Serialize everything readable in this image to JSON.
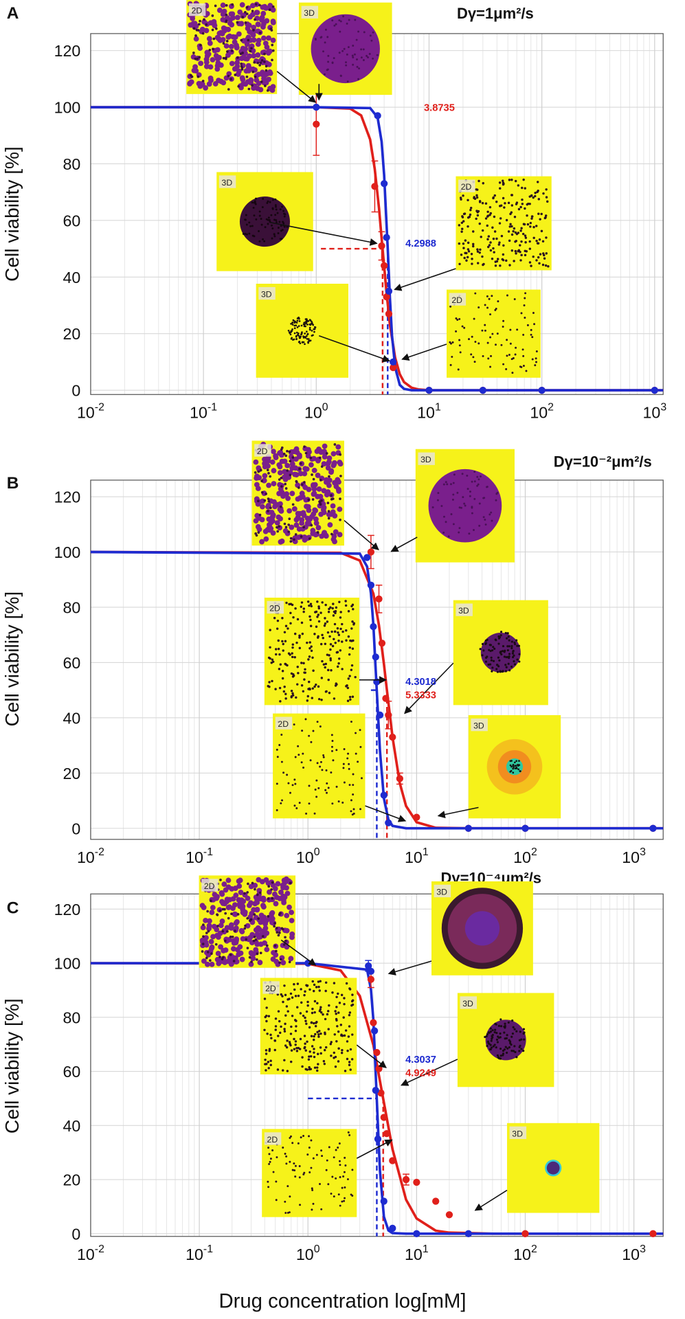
{
  "x_label": "Drug concentration log[mM]",
  "chart_data": [
    {
      "type": "scatter",
      "panel_label": "A",
      "title": "Dγ=1μm²/s",
      "y_label": "Cell viability [%]",
      "log_x": true,
      "grid": true,
      "minor_grid": true,
      "xlim": [
        0.01,
        1190
      ],
      "ylim": [
        -1.5,
        126
      ],
      "xticks": [
        {
          "value": 0.01,
          "label": "10",
          "exponent": "-2"
        },
        {
          "value": 0.1,
          "label": "10",
          "exponent": "-1"
        },
        {
          "value": 1,
          "label": "10",
          "exponent": "0"
        },
        {
          "value": 10,
          "label": "10",
          "exponent": "1"
        },
        {
          "value": 100,
          "label": "10",
          "exponent": "2"
        },
        {
          "value": 1000,
          "label": "10",
          "exponent": "3"
        }
      ],
      "yticks": [
        0,
        20,
        40,
        60,
        80,
        100,
        120
      ],
      "series": [
        {
          "color": "#e0201b",
          "ec50": 3.8735,
          "x": [
            1,
            3.3,
            3.8,
            4.0,
            4.2,
            4.4,
            4.8,
            10,
            30,
            100,
            1000
          ],
          "values": [
            94,
            72,
            51,
            44,
            33,
            27,
            8,
            0,
            0,
            0,
            0
          ],
          "errors": [
            11,
            9,
            5,
            null,
            null,
            null,
            null,
            null,
            null,
            null,
            null
          ],
          "fit": {
            "x": [
              0.01,
              1,
              2,
              2.5,
              3,
              3.3,
              3.6,
              3.87,
              4.2,
              4.5,
              5,
              5.5,
              6,
              7,
              8,
              10,
              1190
            ],
            "values": [
              100,
              100,
              99.5,
              97.1,
              88.6,
              78.2,
              64.3,
              50,
              34.4,
              23.1,
              11.5,
              5.7,
              2.9,
              0.9,
              0.3,
              0,
              0
            ]
          }
        },
        {
          "color": "#1e2bd0",
          "ec50": 4.2988,
          "x": [
            1,
            3.5,
            4.0,
            4.2,
            4.4,
            4.8,
            10,
            30,
            100,
            1000
          ],
          "values": [
            100,
            97,
            73,
            54,
            35,
            10,
            0,
            0,
            0,
            0
          ],
          "errors": [
            null,
            null,
            null,
            null,
            null,
            null,
            null,
            null,
            null,
            null
          ],
          "fit": {
            "x": [
              0.01,
              1,
              3,
              3.5,
              3.8,
              4,
              4.3,
              4.5,
              4.7,
              5,
              5.5,
              6,
              7,
              1190
            ],
            "values": [
              100,
              100,
              99.7,
              96.4,
              87.8,
              76,
              50,
              32.5,
              19.3,
              8.2,
              1.9,
              0.5,
              0,
              0
            ]
          }
        }
      ],
      "insets": [
        {
          "label": "2D"
        },
        {
          "label": "3D"
        },
        {
          "label": "3D"
        },
        {
          "label": "2D"
        },
        {
          "label": "3D"
        },
        {
          "label": "2D"
        }
      ]
    },
    {
      "type": "scatter",
      "panel_label": "B",
      "title": "Dγ=10⁻²μm²/s",
      "y_label": "Cell viability [%]",
      "log_x": true,
      "grid": true,
      "minor_grid": true,
      "xlim": [
        0.01,
        1860
      ],
      "ylim": [
        -4,
        126
      ],
      "xticks": [
        {
          "value": 0.01,
          "label": "10",
          "exponent": "-2"
        },
        {
          "value": 0.1,
          "label": "10",
          "exponent": "-1"
        },
        {
          "value": 1,
          "label": "10",
          "exponent": "0"
        },
        {
          "value": 10,
          "label": "10",
          "exponent": "1"
        },
        {
          "value": 100,
          "label": "10",
          "exponent": "2"
        },
        {
          "value": 1000,
          "label": "10",
          "exponent": "3"
        }
      ],
      "yticks": [
        0,
        20,
        40,
        60,
        80,
        100,
        120
      ],
      "series": [
        {
          "color": "#e0201b",
          "ec50": 5.3333,
          "x": [
            3.8,
            4.5,
            4.8,
            5.2,
            5.5,
            6,
            7,
            10,
            30,
            100,
            1500
          ],
          "values": [
            100,
            83,
            67,
            47,
            41,
            33,
            18,
            4,
            0,
            0,
            0
          ],
          "errors": [
            6,
            5,
            null,
            null,
            5,
            null,
            2,
            null,
            null,
            null,
            null
          ],
          "fit": {
            "x": [
              0.01,
              2,
              3,
              4,
              4.5,
              5,
              5.33,
              6,
              7,
              8,
              10,
              15,
              30,
              1860
            ],
            "values": [
              100,
              99.7,
              96.9,
              84.9,
              73.5,
              59.6,
              50,
              33,
              16.4,
              8.1,
              2.2,
              0.2,
              0,
              0
            ]
          }
        },
        {
          "color": "#1e2bd0",
          "ec50": 4.3018,
          "x": [
            3.5,
            3.8,
            4.0,
            4.2,
            4.3,
            4.6,
            5,
            5.5,
            30,
            100,
            1500
          ],
          "values": [
            98,
            88,
            73,
            62,
            53,
            41,
            12,
            2,
            0,
            0,
            0
          ],
          "errors": [
            null,
            null,
            null,
            null,
            null,
            null,
            null,
            null,
            null,
            null,
            null
          ],
          "fit": {
            "x": [
              0.01,
              3,
              3.5,
              3.8,
              4,
              4.3,
              4.6,
              5,
              5.5,
              6,
              8,
              1860
            ],
            "values": [
              100,
              99.4,
              94.7,
              85,
              73.5,
              50,
              28.2,
              10.9,
              3.1,
              0.9,
              0,
              0
            ]
          }
        }
      ],
      "insets": [
        {
          "label": "2D"
        },
        {
          "label": "3D"
        },
        {
          "label": "2D"
        },
        {
          "label": "3D"
        },
        {
          "label": "2D"
        },
        {
          "label": "3D"
        }
      ]
    },
    {
      "type": "scatter",
      "panel_label": "C",
      "title": "Dγ=10⁻⁴μm²/s",
      "y_label": "Cell viability [%]",
      "log_x": true,
      "grid": true,
      "minor_grid": true,
      "xlim": [
        0.01,
        1860
      ],
      "ylim": [
        -1,
        125.6
      ],
      "xticks": [
        {
          "value": 0.01,
          "label": "10",
          "exponent": "-2"
        },
        {
          "value": 0.1,
          "label": "10",
          "exponent": "-1"
        },
        {
          "value": 1,
          "label": "10",
          "exponent": "0"
        },
        {
          "value": 10,
          "label": "10",
          "exponent": "1"
        },
        {
          "value": 100,
          "label": "10",
          "exponent": "2"
        },
        {
          "value": 1000,
          "label": "10",
          "exponent": "3"
        }
      ],
      "yticks": [
        0,
        20,
        40,
        60,
        80,
        100,
        120
      ],
      "series": [
        {
          "color": "#e0201b",
          "ec50": 4.9249,
          "x": [
            3.8,
            4.0,
            4.3,
            4.5,
            4.7,
            5,
            5.3,
            6,
            8,
            10,
            15,
            20,
            100,
            1500
          ],
          "values": [
            94,
            78,
            67,
            61,
            52,
            43,
            37,
            27,
            20,
            19,
            12,
            7,
            0,
            0
          ],
          "errors": [
            3,
            null,
            null,
            null,
            null,
            null,
            null,
            null,
            2,
            null,
            null,
            null,
            null,
            null
          ],
          "fit": {
            "x": [
              0.01,
              1,
              2,
              3,
              4,
              4.92,
              6,
              8,
              10,
              15,
              20,
              50,
              1860
            ],
            "values": [
              100,
              99.8,
              97.3,
              87.9,
              69.7,
              50,
              31.2,
              12.6,
              5.6,
              1.1,
              0.4,
              0,
              0
            ]
          }
        },
        {
          "color": "#1e2bd0",
          "ec50": 4.3037,
          "x": [
            1,
            3.6,
            3.8,
            4.1,
            4.2,
            4.4,
            5,
            6,
            10,
            30
          ],
          "values": [
            100,
            99,
            97,
            75,
            53,
            35,
            12,
            2,
            0,
            0
          ],
          "errors": [
            null,
            2,
            null,
            null,
            null,
            null,
            null,
            null,
            null,
            null
          ],
          "fit": {
            "x": [
              0.01,
              1,
              3.5,
              3.8,
              4,
              4.3,
              4.6,
              5,
              5.5,
              6,
              8,
              1860
            ],
            "values": [
              100,
              100,
              97.6,
              90.3,
              78.9,
              50,
              23.3,
              6.3,
              1.2,
              0.2,
              0,
              0
            ]
          }
        }
      ],
      "insets": [
        {
          "label": "2D"
        },
        {
          "label": "3D"
        },
        {
          "label": "2D"
        },
        {
          "label": "3D"
        },
        {
          "label": "2D"
        },
        {
          "label": "3D"
        }
      ]
    }
  ]
}
